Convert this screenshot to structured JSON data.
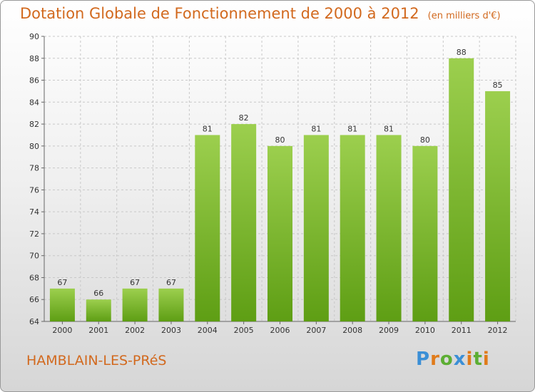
{
  "header": {
    "title": "Dotation Globale de Fonctionnement de 2000 à 2012",
    "subtitle": "(en milliers d'€)"
  },
  "footer": {
    "city": "HAMBLAIN-LES-PRéS",
    "logo": "Proxiti"
  },
  "colors": {
    "bar_top": "#9ccf4e",
    "bar_bottom": "#5e9e14",
    "title": "#d2691e"
  },
  "chart_data": {
    "type": "bar",
    "title": "Dotation Globale de Fonctionnement de 2000 à 2012",
    "subtitle": "(en milliers d'€)",
    "categories": [
      "2000",
      "2001",
      "2002",
      "2003",
      "2004",
      "2005",
      "2006",
      "2007",
      "2008",
      "2009",
      "2010",
      "2011",
      "2012"
    ],
    "values": [
      67,
      66,
      67,
      67,
      81,
      82,
      80,
      81,
      81,
      81,
      80,
      88,
      85
    ],
    "xlabel": "",
    "ylabel": "",
    "ylim": [
      64,
      90
    ],
    "yticks": [
      64,
      66,
      68,
      70,
      72,
      74,
      76,
      78,
      80,
      82,
      84,
      86,
      88,
      90
    ],
    "grid": true,
    "data_labels": true
  }
}
